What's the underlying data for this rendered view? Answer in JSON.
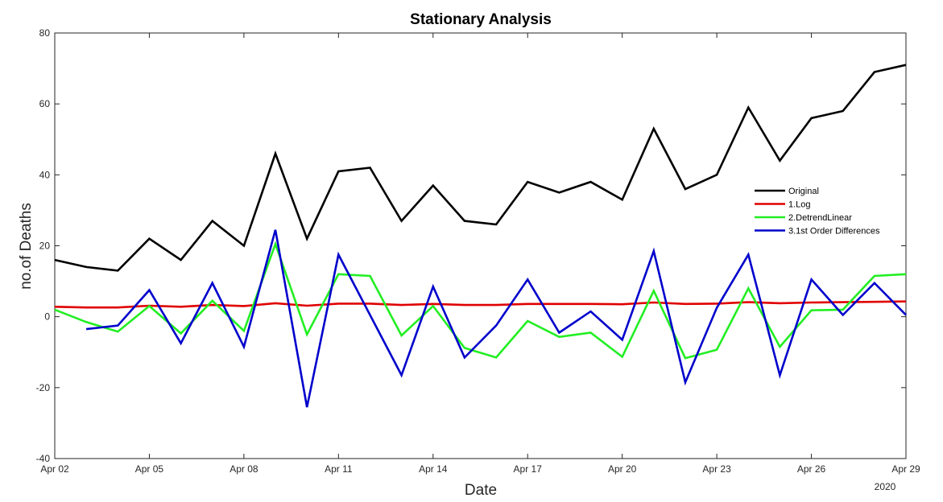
{
  "chart_data": {
    "type": "line",
    "title": "Stationary Analysis",
    "xlabel": "Date",
    "ylabel": "no.of Deaths",
    "year_label": "2020",
    "x": [
      "Apr 02",
      "Apr 03",
      "Apr 04",
      "Apr 05",
      "Apr 06",
      "Apr 07",
      "Apr 08",
      "Apr 09",
      "Apr 10",
      "Apr 11",
      "Apr 12",
      "Apr 13",
      "Apr 14",
      "Apr 15",
      "Apr 16",
      "Apr 17",
      "Apr 18",
      "Apr 19",
      "Apr 20",
      "Apr 21",
      "Apr 22",
      "Apr 23",
      "Apr 24",
      "Apr 25",
      "Apr 26",
      "Apr 27",
      "Apr 28",
      "Apr 29"
    ],
    "xticks": [
      "Apr 02",
      "Apr 05",
      "Apr 08",
      "Apr 11",
      "Apr 14",
      "Apr 17",
      "Apr 20",
      "Apr 23",
      "Apr 26",
      "Apr 29"
    ],
    "ylim": [
      -40,
      80
    ],
    "yticks": [
      -40,
      -20,
      0,
      20,
      40,
      60,
      80
    ],
    "legend_position": "right",
    "series": [
      {
        "name": "Original",
        "color": "#000000",
        "values": [
          16,
          14,
          13,
          22,
          16,
          27,
          20,
          46,
          22,
          41,
          42,
          27,
          37,
          27,
          26,
          38,
          35,
          38,
          33,
          53,
          36,
          40,
          59,
          44,
          56,
          58,
          69,
          71
        ]
      },
      {
        "name": "1.Log",
        "color": "#e00000",
        "values": [
          2.8,
          2.6,
          2.6,
          3.1,
          2.8,
          3.3,
          3.0,
          3.8,
          3.1,
          3.7,
          3.7,
          3.3,
          3.6,
          3.3,
          3.3,
          3.6,
          3.6,
          3.6,
          3.5,
          4.0,
          3.6,
          3.7,
          4.1,
          3.8,
          4.0,
          4.1,
          4.2,
          4.3
        ]
      },
      {
        "name": "2.DetrendLinear",
        "color": "#22ee22",
        "values": [
          2,
          -1.5,
          -4.2,
          3,
          -4.7,
          4.5,
          -4,
          20.5,
          -5,
          12,
          11.5,
          -5.3,
          3,
          -8.8,
          -11.5,
          -1.2,
          -5.7,
          -4.5,
          -11.3,
          7.3,
          -11.7,
          -9.3,
          8,
          -8.5,
          1.8,
          2,
          11.5,
          12
        ]
      },
      {
        "name": "3.1st Order Differences",
        "color": "#0000cc",
        "values": [
          null,
          -3.5,
          -2.5,
          7.5,
          -7.5,
          9.5,
          -8.5,
          24.5,
          -25.5,
          17.5,
          0.5,
          -16.5,
          8.5,
          -11.5,
          -2.5,
          10.5,
          -4.5,
          1.5,
          -6.5,
          18.5,
          -18.5,
          2.5,
          17.5,
          -16.5,
          10.5,
          0.5,
          9.5,
          0.5
        ]
      }
    ]
  }
}
